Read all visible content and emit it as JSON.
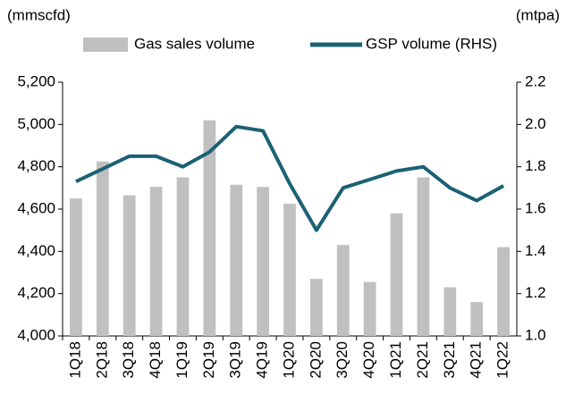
{
  "chart_data": {
    "type": "bar-line",
    "ylabel": "(mmscfd)",
    "y2label": "(mtpa)",
    "categories": [
      "1Q18",
      "2Q18",
      "3Q18",
      "4Q18",
      "1Q19",
      "2Q19",
      "3Q19",
      "4Q19",
      "1Q20",
      "2Q20",
      "3Q20",
      "4Q20",
      "1Q21",
      "2Q21",
      "3Q21",
      "4Q21",
      "1Q22"
    ],
    "series": [
      {
        "name": "Gas sales volume",
        "type": "bar",
        "color": "#c0c0c0",
        "values": [
          4650,
          4825,
          4665,
          4705,
          4750,
          5020,
          4715,
          4705,
          4625,
          4270,
          4430,
          4255,
          4580,
          4750,
          4230,
          4160,
          4420
        ]
      },
      {
        "name": "GSP volume (RHS)",
        "type": "line",
        "axis": "y2",
        "color": "#1b6175",
        "values": [
          1.73,
          1.79,
          1.85,
          1.85,
          1.8,
          1.87,
          1.99,
          1.97,
          1.72,
          1.5,
          1.7,
          1.74,
          1.78,
          1.8,
          1.7,
          1.64,
          1.71
        ]
      }
    ],
    "ylim": [
      4000,
      5200
    ],
    "yticks": [
      {
        "value": 4000,
        "label": "4,000"
      },
      {
        "value": 4200,
        "label": "4,200"
      },
      {
        "value": 4400,
        "label": "4,400"
      },
      {
        "value": 4600,
        "label": "4,600"
      },
      {
        "value": 4800,
        "label": "4,800"
      },
      {
        "value": 5000,
        "label": "5,000"
      },
      {
        "value": 5200,
        "label": "5,200"
      }
    ],
    "y2lim": [
      1.0,
      2.2
    ],
    "y2ticks": [
      {
        "value": 1.0,
        "label": "1.0"
      },
      {
        "value": 1.2,
        "label": "1.2"
      },
      {
        "value": 1.4,
        "label": "1.4"
      },
      {
        "value": 1.6,
        "label": "1.6"
      },
      {
        "value": 1.8,
        "label": "1.8"
      },
      {
        "value": 2.0,
        "label": "2.0"
      },
      {
        "value": 2.2,
        "label": "2.2"
      }
    ],
    "grid": false
  }
}
